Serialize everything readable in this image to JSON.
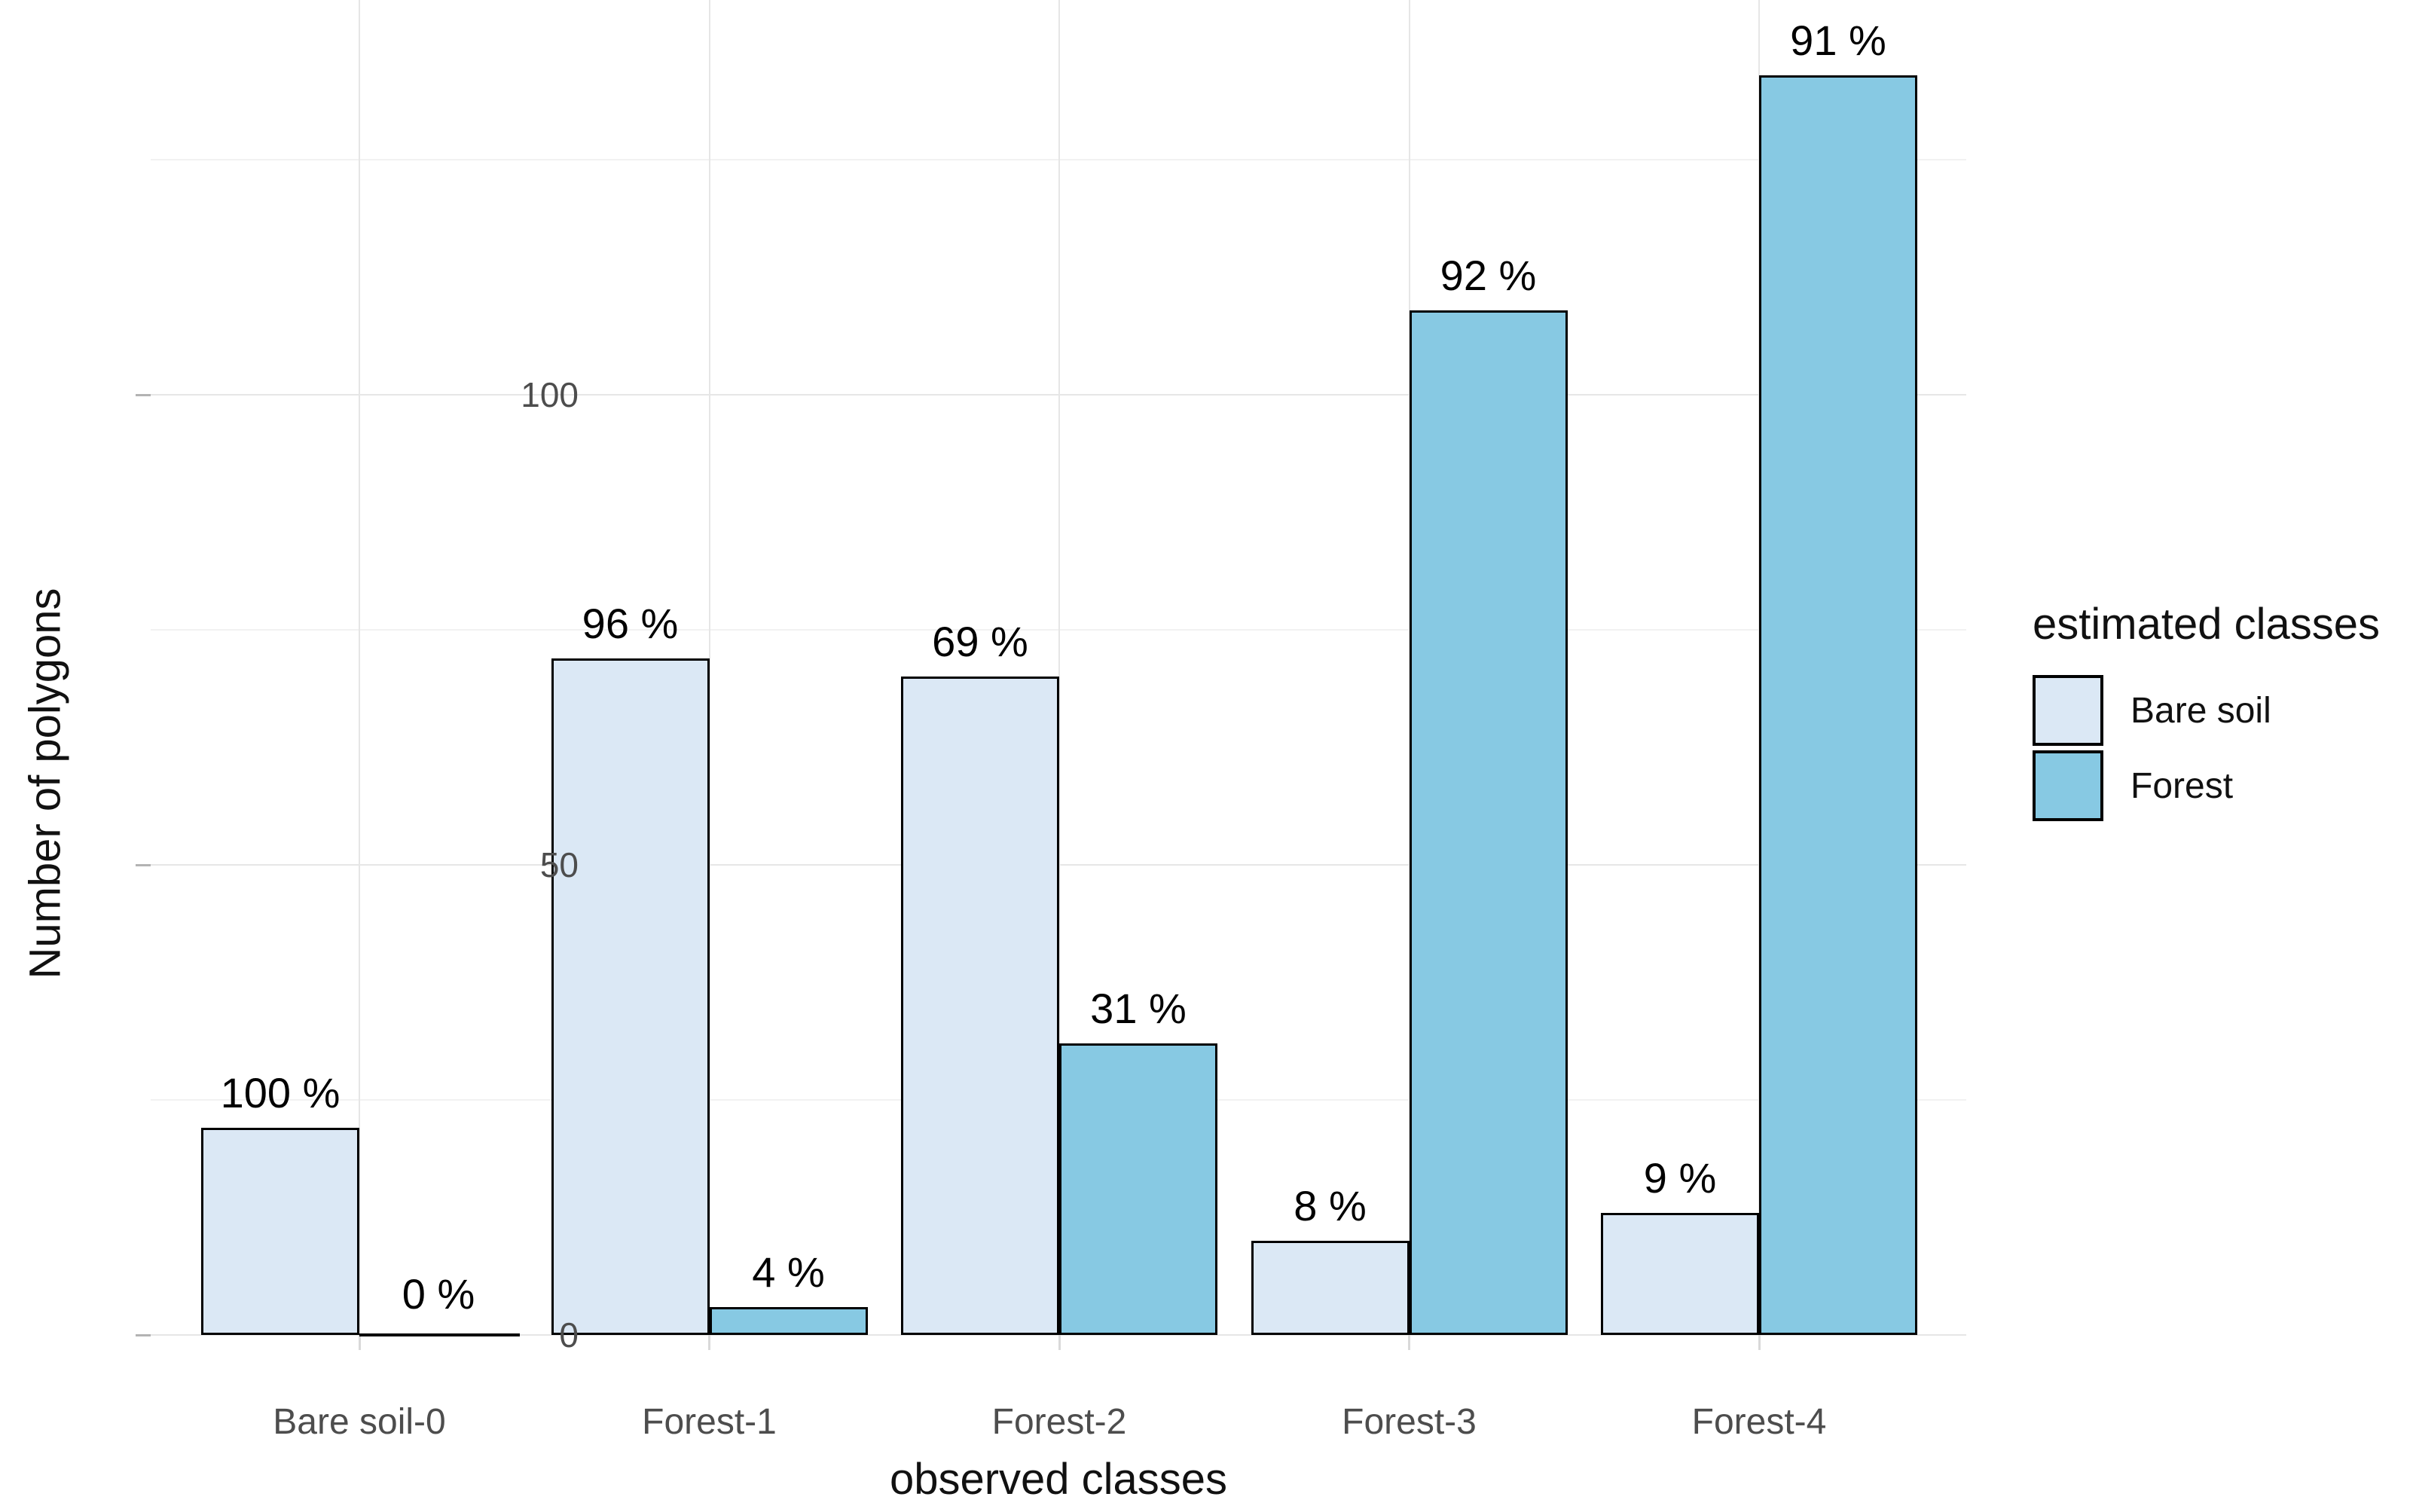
{
  "figure": {
    "background": "#ffffff"
  },
  "chart_data": {
    "type": "bar",
    "title": "",
    "xlabel": "observed classes",
    "ylabel": "Number of polygons",
    "categories": [
      "Bare soil-0",
      "Forest-1",
      "Forest-2",
      "Forest-3",
      "Forest-4"
    ],
    "series": [
      {
        "name": "Bare soil",
        "color": "#dbe8f5",
        "values": [
          22,
          72,
          70,
          10,
          13
        ],
        "bar_labels": [
          "100 %",
          "96 %",
          "69 %",
          "8 %",
          "9 %"
        ]
      },
      {
        "name": "Forest",
        "color": "#87c9e3",
        "values": [
          0,
          3,
          31,
          109,
          134
        ],
        "bar_labels": [
          "0 %",
          "4 %",
          "31 %",
          "92 %",
          "91 %"
        ]
      }
    ],
    "ylim": [
      0,
      142
    ],
    "yticks": [
      0,
      50,
      100
    ],
    "yticks_minor": [
      25,
      75,
      125
    ],
    "grid": true,
    "bar_outline_color": "#000000",
    "legend_title": "estimated classes",
    "legend_position": "right"
  },
  "colors": {
    "grid_major": "#e6e6e6",
    "grid_minor": "#f2f2f2",
    "tick_label": "#4d4d4d",
    "axis_title": "#111111",
    "bar_label": "#000000"
  }
}
